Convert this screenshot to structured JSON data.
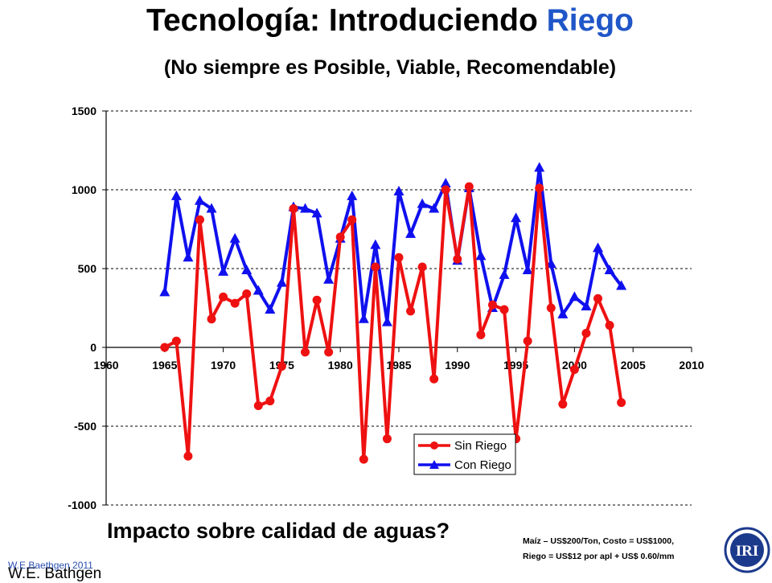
{
  "title": {
    "prefix": "Tecnología: Introduciendo ",
    "highlight": "Riego",
    "highlight_color": "#1f56c8"
  },
  "subtitle": "(No siempre es Posible, Viable, Recomendable)",
  "question": "Impacto sobre calidad de aguas?",
  "note": {
    "line1": "Maíz – US$200/Ton, Costo = US$1000,",
    "line2": "Riego = US$12 por apl + US$ 0.60/mm"
  },
  "credit_small": "W.E.Baethgen 2011",
  "credit_large": "W.E. Bathgen",
  "logo_text": "IRI",
  "chart_data": {
    "type": "line",
    "title": "",
    "xlabel": "",
    "ylabel": "",
    "xlim": [
      1960,
      2010
    ],
    "ylim": [
      -1000,
      1500
    ],
    "xticks": [
      1960,
      1965,
      1970,
      1975,
      1980,
      1985,
      1990,
      1995,
      2000,
      2005,
      2010
    ],
    "yticks": [
      -1000,
      -500,
      0,
      500,
      1000,
      1500
    ],
    "grid": "horizontal dashed",
    "legend_position": "bottom-center",
    "x": [
      1965,
      1966,
      1967,
      1968,
      1969,
      1970,
      1971,
      1972,
      1973,
      1974,
      1975,
      1976,
      1977,
      1978,
      1979,
      1980,
      1981,
      1982,
      1983,
      1984,
      1985,
      1986,
      1987,
      1988,
      1989,
      1990,
      1991,
      1992,
      1993,
      1994,
      1995,
      1996,
      1997,
      1998,
      1999,
      2000,
      2001,
      2002,
      2003,
      2004
    ],
    "series": [
      {
        "name": "Sin Riego",
        "color": "#ee1111",
        "marker": "circle",
        "values": [
          0,
          40,
          -690,
          810,
          180,
          320,
          280,
          340,
          -370,
          -340,
          -120,
          880,
          -30,
          300,
          -30,
          700,
          810,
          -710,
          510,
          -580,
          570,
          230,
          510,
          -200,
          1000,
          560,
          1020,
          80,
          270,
          240,
          -580,
          40,
          1010,
          250,
          -360,
          -140,
          90,
          310,
          140,
          -350
        ]
      },
      {
        "name": "Con Riego",
        "color": "#1010ee",
        "marker": "triangle",
        "values": [
          350,
          960,
          570,
          930,
          880,
          480,
          690,
          490,
          360,
          240,
          410,
          890,
          880,
          850,
          430,
          690,
          960,
          180,
          650,
          160,
          990,
          720,
          910,
          880,
          1040,
          550,
          1010,
          580,
          250,
          460,
          820,
          490,
          1140,
          530,
          210,
          320,
          260,
          630,
          490,
          390
        ]
      }
    ]
  }
}
